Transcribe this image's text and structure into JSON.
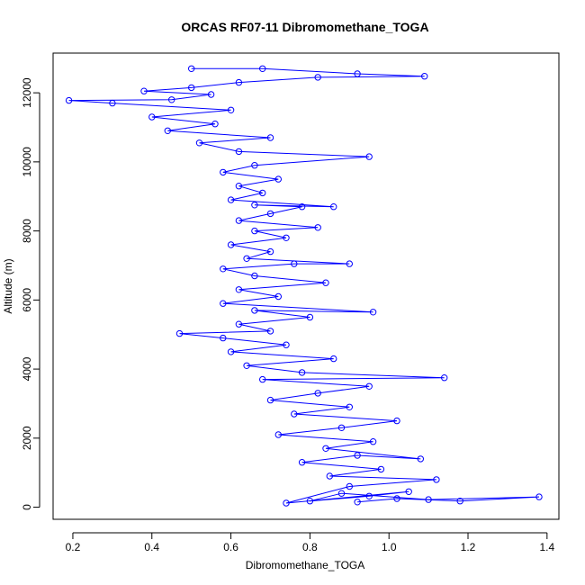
{
  "chart_data": {
    "type": "line",
    "title": "ORCAS RF07-11 Dibromomethane_TOGA",
    "xlabel": "Dibromomethane_TOGA",
    "ylabel": "Altitude (m)",
    "xlim": [
      0.15,
      1.43
    ],
    "ylim": [
      -350,
      13150
    ],
    "xticks": [
      0.2,
      0.4,
      0.6,
      0.8,
      1.0,
      1.2,
      1.4
    ],
    "xtick_labels": [
      "0.2",
      "0.4",
      "0.6",
      "0.8",
      "1.0",
      "1.2",
      "1.4"
    ],
    "yticks": [
      0,
      2000,
      4000,
      6000,
      8000,
      10000,
      12000
    ],
    "ytick_labels": [
      "0",
      "2000",
      "4000",
      "6000",
      "8000",
      "10000",
      "12000"
    ],
    "marker": "open-circle",
    "series": [
      {
        "name": "Dibromomethane_TOGA",
        "color": "#0000ff",
        "points": [
          [
            0.92,
            150
          ],
          [
            1.02,
            250
          ],
          [
            1.18,
            180
          ],
          [
            1.38,
            300
          ],
          [
            1.1,
            220
          ],
          [
            0.88,
            400
          ],
          [
            0.8,
            180
          ],
          [
            0.95,
            320
          ],
          [
            1.05,
            450
          ],
          [
            0.74,
            120
          ],
          [
            0.9,
            600
          ],
          [
            1.12,
            800
          ],
          [
            0.85,
            900
          ],
          [
            0.98,
            1100
          ],
          [
            0.78,
            1300
          ],
          [
            0.92,
            1500
          ],
          [
            1.08,
            1400
          ],
          [
            0.84,
            1700
          ],
          [
            0.96,
            1900
          ],
          [
            0.72,
            2100
          ],
          [
            0.88,
            2300
          ],
          [
            1.02,
            2500
          ],
          [
            0.76,
            2700
          ],
          [
            0.9,
            2900
          ],
          [
            0.7,
            3100
          ],
          [
            0.82,
            3300
          ],
          [
            0.95,
            3500
          ],
          [
            0.68,
            3700
          ],
          [
            1.14,
            3750
          ],
          [
            0.78,
            3900
          ],
          [
            0.64,
            4100
          ],
          [
            0.86,
            4300
          ],
          [
            0.6,
            4500
          ],
          [
            0.74,
            4700
          ],
          [
            0.58,
            4900
          ],
          [
            0.47,
            5030
          ],
          [
            0.7,
            5100
          ],
          [
            0.62,
            5300
          ],
          [
            0.8,
            5500
          ],
          [
            0.66,
            5700
          ],
          [
            0.96,
            5650
          ],
          [
            0.58,
            5900
          ],
          [
            0.72,
            6100
          ],
          [
            0.62,
            6300
          ],
          [
            0.84,
            6500
          ],
          [
            0.66,
            6700
          ],
          [
            0.58,
            6900
          ],
          [
            0.76,
            7050
          ],
          [
            0.9,
            7050
          ],
          [
            0.64,
            7200
          ],
          [
            0.7,
            7400
          ],
          [
            0.6,
            7600
          ],
          [
            0.74,
            7800
          ],
          [
            0.66,
            8000
          ],
          [
            0.82,
            8100
          ],
          [
            0.62,
            8300
          ],
          [
            0.7,
            8500
          ],
          [
            0.78,
            8700
          ],
          [
            0.66,
            8750
          ],
          [
            0.86,
            8700
          ],
          [
            0.6,
            8900
          ],
          [
            0.68,
            9100
          ],
          [
            0.62,
            9300
          ],
          [
            0.72,
            9500
          ],
          [
            0.58,
            9700
          ],
          [
            0.66,
            9900
          ],
          [
            0.95,
            10150
          ],
          [
            0.62,
            10300
          ],
          [
            0.52,
            10550
          ],
          [
            0.7,
            10700
          ],
          [
            0.44,
            10900
          ],
          [
            0.56,
            11100
          ],
          [
            0.4,
            11300
          ],
          [
            0.6,
            11500
          ],
          [
            0.3,
            11700
          ],
          [
            0.19,
            11780
          ],
          [
            0.45,
            11800
          ],
          [
            0.55,
            11950
          ],
          [
            0.38,
            12050
          ],
          [
            0.5,
            12150
          ],
          [
            0.62,
            12300
          ],
          [
            0.82,
            12450
          ],
          [
            1.09,
            12480
          ],
          [
            0.92,
            12550
          ],
          [
            0.68,
            12700
          ],
          [
            0.5,
            12700
          ]
        ]
      }
    ]
  }
}
